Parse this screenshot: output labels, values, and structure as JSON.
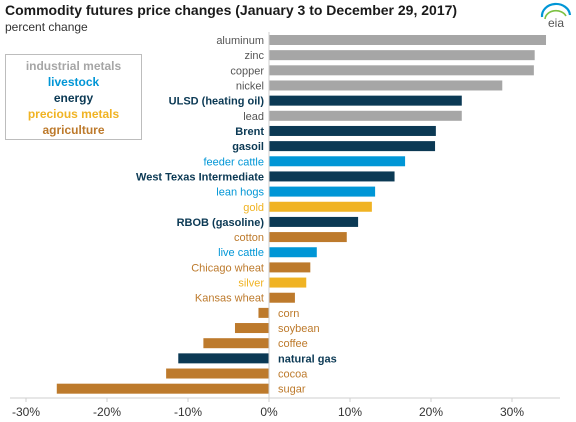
{
  "header": {
    "title": "Commodity futures price changes (January 3 to December 29, 2017)",
    "subtitle": "percent change"
  },
  "logo": {
    "text": "eia",
    "icon": "eia-logo"
  },
  "colors": {
    "industrial_metals": "#a6a6a6",
    "livestock": "#0096d6",
    "energy": "#0b3954",
    "precious_metals": "#f0b323",
    "agriculture": "#bd7a2c",
    "text_dark": "#0b3954",
    "text_gray": "#555555",
    "axis": "#cfcfcf"
  },
  "legend": [
    {
      "label": "industrial metals",
      "group": "industrial_metals"
    },
    {
      "label": "livestock",
      "group": "livestock"
    },
    {
      "label": "energy",
      "group": "energy"
    },
    {
      "label": "precious metals",
      "group": "precious_metals"
    },
    {
      "label": "agriculture",
      "group": "agriculture"
    }
  ],
  "chart_data": {
    "type": "bar",
    "orientation": "horizontal",
    "title": "Commodity futures price changes (January 3 to December 29, 2017)",
    "subtitle": "percent change",
    "xlim": [
      -30,
      35
    ],
    "xticks": [
      -30,
      -20,
      -10,
      0,
      10,
      20,
      30
    ],
    "xtick_labels": [
      "-30%",
      "-20%",
      "-10%",
      "0%",
      "10%",
      "20%",
      "30%"
    ],
    "grid": false,
    "legend_position": "top-left",
    "bars": [
      {
        "label": "aluminum",
        "value": 34.2,
        "group": "industrial_metals"
      },
      {
        "label": "zinc",
        "value": 32.8,
        "group": "industrial_metals"
      },
      {
        "label": "copper",
        "value": 32.7,
        "group": "industrial_metals"
      },
      {
        "label": "nickel",
        "value": 28.8,
        "group": "industrial_metals"
      },
      {
        "label": "ULSD (heating oil)",
        "value": 23.8,
        "group": "energy"
      },
      {
        "label": "lead",
        "value": 23.8,
        "group": "industrial_metals"
      },
      {
        "label": "Brent",
        "value": 20.6,
        "group": "energy"
      },
      {
        "label": "gasoil",
        "value": 20.5,
        "group": "energy"
      },
      {
        "label": "feeder cattle",
        "value": 16.8,
        "group": "livestock"
      },
      {
        "label": "West Texas Intermediate",
        "value": 15.5,
        "group": "energy"
      },
      {
        "label": "lean hogs",
        "value": 13.1,
        "group": "livestock"
      },
      {
        "label": "gold",
        "value": 12.7,
        "group": "precious_metals"
      },
      {
        "label": "RBOB (gasoline)",
        "value": 11.0,
        "group": "energy"
      },
      {
        "label": "cotton",
        "value": 9.6,
        "group": "agriculture"
      },
      {
        "label": "live cattle",
        "value": 5.9,
        "group": "livestock"
      },
      {
        "label": "Chicago wheat",
        "value": 5.1,
        "group": "agriculture"
      },
      {
        "label": "silver",
        "value": 4.6,
        "group": "precious_metals"
      },
      {
        "label": "Kansas wheat",
        "value": 3.2,
        "group": "agriculture"
      },
      {
        "label": "corn",
        "value": -1.3,
        "group": "agriculture"
      },
      {
        "label": "soybean",
        "value": -4.2,
        "group": "agriculture"
      },
      {
        "label": "coffee",
        "value": -8.1,
        "group": "agriculture"
      },
      {
        "label": "natural gas",
        "value": -11.2,
        "group": "energy"
      },
      {
        "label": "cocoa",
        "value": -12.7,
        "group": "agriculture"
      },
      {
        "label": "sugar",
        "value": -26.2,
        "group": "agriculture"
      }
    ]
  }
}
